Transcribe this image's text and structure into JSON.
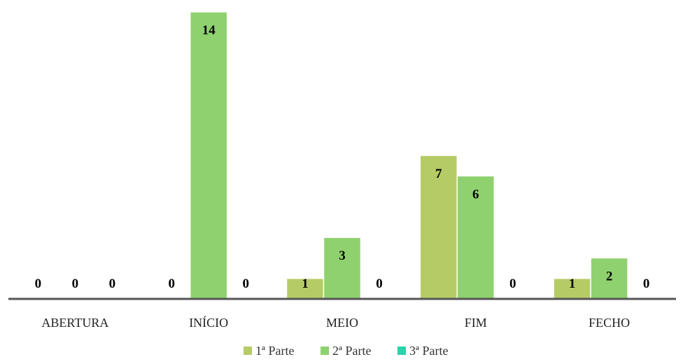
{
  "chart_data": {
    "type": "bar",
    "categories": [
      "ABERTURA",
      "INÍCIO",
      "MEIO",
      "FIM",
      "FECHO"
    ],
    "series": [
      {
        "name": "1ª Parte",
        "values": [
          0,
          0,
          1,
          7,
          1
        ]
      },
      {
        "name": "2ª Parte",
        "values": [
          0,
          14,
          3,
          6,
          2
        ]
      },
      {
        "name": "3ª Parte",
        "values": [
          0,
          0,
          0,
          0,
          0
        ]
      }
    ],
    "ylim": [
      0,
      14
    ],
    "grid": false,
    "legend": "bottom",
    "colors": [
      "#b5cc66",
      "#8fd16f",
      "#2ed1a8"
    ]
  }
}
